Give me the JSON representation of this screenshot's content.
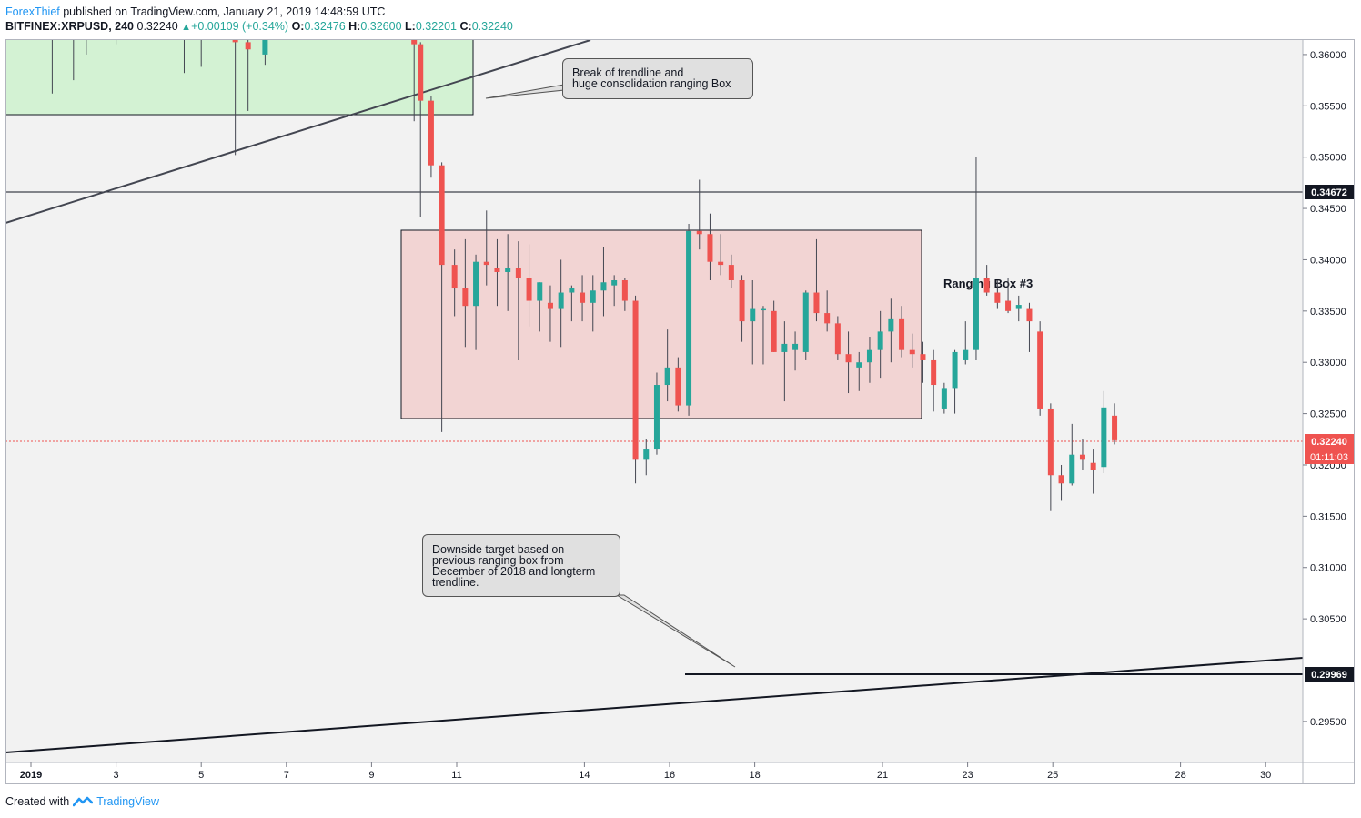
{
  "header": {
    "author": "ForexThief",
    "published": " published on TradingView.com, January 21, 2019 14:48:59 UTC"
  },
  "ohlc": {
    "symbol": "BITFINEX:XRPUSD, 240",
    "last": "0.32240",
    "change": "+0.00109 (+0.34%)",
    "o_label": "O:",
    "o_value": "0.32476",
    "h_label": "H:",
    "h_value": "0.32600",
    "l_label": "L:",
    "l_value": "0.32201",
    "c_label": "C:",
    "c_value": "0.32240"
  },
  "annotations": {
    "callout_trendline": "Break of trendline and\nhuge consolidation ranging Box",
    "callout_target": "Downside target based on\nprevious ranging box from\nDecember of 2018 and longterm\ntrendline.",
    "ranging_box_label": "Ranging Box #3"
  },
  "footer": {
    "created_with": "Created with",
    "brand": "TradingView"
  },
  "colors": {
    "bull": "#26a69a",
    "bear": "#ef5350",
    "ranging_box_fill": "#f2d4d3",
    "green_box_fill": "#d3f2d3",
    "background": "#f2f2f2"
  },
  "chart_data": {
    "type": "candlestick",
    "x_axis_ticks": [
      "2019",
      "3",
      "5",
      "7",
      "9",
      "11",
      "14",
      "16",
      "18",
      "21",
      "23",
      "25",
      "28",
      "30"
    ],
    "y_axis_ticks": [
      "0.36000",
      "0.35500",
      "0.35000",
      "0.34500",
      "0.34000",
      "0.33500",
      "0.33000",
      "0.32500",
      "0.32000",
      "0.31500",
      "0.31000",
      "0.30500",
      "0.29500"
    ],
    "ylim": [
      0.291,
      0.3615
    ],
    "price_labels": {
      "resistance": "0.34672",
      "last_price": "0.32240",
      "countdown": "01:11:03",
      "target": "0.29969"
    },
    "series": [
      {
        "candles": [
          [
            1.5,
            0.3615,
            0.3621,
            0.3562,
            0.3618
          ],
          [
            2.0,
            0.3618,
            0.364,
            0.3575,
            0.3616
          ],
          [
            2.3,
            0.3616,
            0.3635,
            0.36,
            0.3618
          ],
          [
            3.0,
            0.3617,
            0.363,
            0.361,
            0.362
          ],
          [
            4.6,
            0.3615,
            0.363,
            0.3582,
            0.3617
          ],
          [
            5.0,
            0.3617,
            0.3632,
            0.3588,
            0.3616
          ],
          [
            5.8,
            0.3618,
            0.3628,
            0.3502,
            0.3612
          ],
          [
            6.1,
            0.3612,
            0.363,
            0.3545,
            0.3605
          ],
          [
            6.5,
            0.36,
            0.362,
            0.359,
            0.3618
          ],
          [
            10.0,
            0.3615,
            0.364,
            0.3535,
            0.361
          ],
          [
            10.15,
            0.361,
            0.3612,
            0.3442,
            0.3555
          ],
          [
            10.4,
            0.3555,
            0.356,
            0.348,
            0.3492
          ],
          [
            10.65,
            0.3492,
            0.3495,
            0.3232,
            0.3395
          ],
          [
            10.95,
            0.3395,
            0.341,
            0.3345,
            0.3372
          ],
          [
            11.2,
            0.3372,
            0.342,
            0.3315,
            0.3355
          ],
          [
            11.45,
            0.3355,
            0.3405,
            0.3312,
            0.3398
          ],
          [
            11.7,
            0.3398,
            0.3448,
            0.3375,
            0.3395
          ],
          [
            11.95,
            0.3392,
            0.342,
            0.3355,
            0.3388
          ],
          [
            12.2,
            0.3388,
            0.3425,
            0.335,
            0.3392
          ],
          [
            12.45,
            0.3392,
            0.3418,
            0.3302,
            0.3382
          ],
          [
            12.7,
            0.3382,
            0.3415,
            0.3335,
            0.336
          ],
          [
            12.95,
            0.336,
            0.3378,
            0.333,
            0.3378
          ],
          [
            13.2,
            0.3358,
            0.3375,
            0.332,
            0.3352
          ],
          [
            13.45,
            0.3352,
            0.34,
            0.3315,
            0.3368
          ],
          [
            13.7,
            0.3368,
            0.3375,
            0.334,
            0.3372
          ],
          [
            13.95,
            0.3368,
            0.3385,
            0.334,
            0.3358
          ],
          [
            14.2,
            0.3358,
            0.3385,
            0.333,
            0.337
          ],
          [
            14.45,
            0.337,
            0.3412,
            0.3345,
            0.3378
          ],
          [
            14.7,
            0.3375,
            0.3385,
            0.3355,
            0.338
          ],
          [
            14.95,
            0.338,
            0.3382,
            0.335,
            0.336
          ],
          [
            15.2,
            0.336,
            0.3365,
            0.3182,
            0.3205
          ],
          [
            15.45,
            0.3205,
            0.3225,
            0.319,
            0.3215
          ],
          [
            15.7,
            0.3215,
            0.329,
            0.321,
            0.3278
          ],
          [
            15.95,
            0.3278,
            0.3332,
            0.3262,
            0.3295
          ],
          [
            16.2,
            0.3295,
            0.3305,
            0.3252,
            0.3258
          ],
          [
            16.45,
            0.3258,
            0.3435,
            0.3248,
            0.3428
          ],
          [
            16.7,
            0.3428,
            0.3478,
            0.341,
            0.3425
          ],
          [
            16.95,
            0.3425,
            0.3445,
            0.338,
            0.3398
          ],
          [
            17.2,
            0.3398,
            0.3425,
            0.3385,
            0.3395
          ],
          [
            17.45,
            0.3395,
            0.3405,
            0.3372,
            0.338
          ],
          [
            17.7,
            0.338,
            0.3385,
            0.332,
            0.334
          ],
          [
            17.95,
            0.334,
            0.338,
            0.3298,
            0.3352
          ],
          [
            18.2,
            0.3352,
            0.3355,
            0.3298,
            0.3352
          ],
          [
            18.45,
            0.335,
            0.336,
            0.331,
            0.331
          ],
          [
            18.7,
            0.331,
            0.334,
            0.3262,
            0.3318
          ],
          [
            18.95,
            0.3312,
            0.333,
            0.3292,
            0.3318
          ],
          [
            19.2,
            0.331,
            0.337,
            0.3302,
            0.3368
          ],
          [
            19.45,
            0.3368,
            0.342,
            0.334,
            0.3348
          ],
          [
            19.7,
            0.3348,
            0.337,
            0.333,
            0.3338
          ],
          [
            19.95,
            0.3338,
            0.3345,
            0.3302,
            0.3308
          ],
          [
            20.2,
            0.3308,
            0.333,
            0.327,
            0.33
          ],
          [
            20.45,
            0.3295,
            0.331,
            0.3272,
            0.33
          ],
          [
            20.7,
            0.33,
            0.3325,
            0.328,
            0.3312
          ],
          [
            20.95,
            0.3312,
            0.335,
            0.3285,
            0.333
          ],
          [
            21.2,
            0.333,
            0.3362,
            0.33,
            0.3342
          ],
          [
            21.45,
            0.3342,
            0.3355,
            0.3305,
            0.3312
          ],
          [
            21.7,
            0.3312,
            0.3328,
            0.3295,
            0.3308
          ],
          [
            21.95,
            0.3308,
            0.332,
            0.328,
            0.3302
          ],
          [
            22.2,
            0.3302,
            0.3312,
            0.3252,
            0.3278
          ],
          [
            22.45,
            0.3255,
            0.328,
            0.325,
            0.3275
          ],
          [
            22.7,
            0.3275,
            0.3312,
            0.325,
            0.331
          ],
          [
            22.95,
            0.3302,
            0.334,
            0.3298,
            0.3312
          ],
          [
            23.2,
            0.3312,
            0.35,
            0.3302,
            0.3382
          ],
          [
            23.45,
            0.3382,
            0.3395,
            0.3365,
            0.3368
          ],
          [
            23.7,
            0.3368,
            0.338,
            0.3352,
            0.3358
          ],
          [
            23.95,
            0.336,
            0.3382,
            0.3348,
            0.335
          ],
          [
            24.2,
            0.3352,
            0.3365,
            0.334,
            0.3356
          ],
          [
            24.45,
            0.3352,
            0.3358,
            0.331,
            0.334
          ],
          [
            24.7,
            0.333,
            0.334,
            0.3248,
            0.3255
          ],
          [
            24.95,
            0.3255,
            0.326,
            0.3155,
            0.319
          ],
          [
            25.2,
            0.319,
            0.32,
            0.3165,
            0.3182
          ],
          [
            25.45,
            0.3182,
            0.324,
            0.318,
            0.321
          ],
          [
            25.7,
            0.321,
            0.3225,
            0.3195,
            0.3205
          ],
          [
            25.95,
            0.3202,
            0.3215,
            0.3172,
            0.3195
          ],
          [
            26.2,
            0.3198,
            0.3272,
            0.3192,
            0.3256
          ],
          [
            26.45,
            0.3248,
            0.326,
            0.322,
            0.3224
          ]
        ]
      }
    ]
  }
}
